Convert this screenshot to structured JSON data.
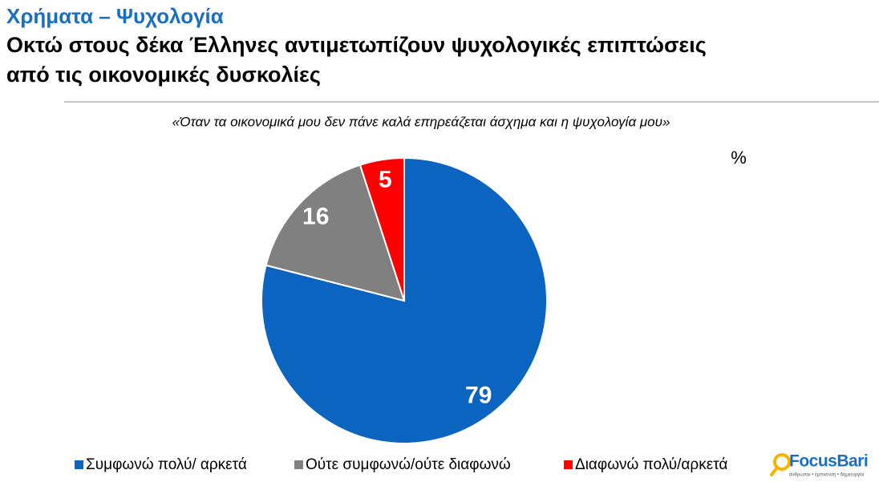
{
  "chart_data": {
    "type": "pie",
    "title": "Χρήματα – Ψυχολογία",
    "subtitle": [
      "Οκτώ στους δέκα Έλληνες αντιμετωπίζουν ψυχολογικές επιπτώσεις",
      "από τις οικονομικές δυσκολίες"
    ],
    "question": "«Όταν τα οικονομικά μου δεν πάνε καλά επηρεάζεται άσχημα και η ψυχολογία μου»",
    "unit": "%",
    "categories": [
      "Συμφωνώ πολύ/ αρκετά",
      "Ούτε συμφωνώ/ούτε διαφωνώ",
      "Διαφωνώ πολύ/αρκετά"
    ],
    "values": [
      79,
      16,
      5
    ],
    "colors": [
      "#0a64c0",
      "#808080",
      "#ff0000"
    ]
  },
  "logo": {
    "name": "FocusBari",
    "tagline": "άνθρωποι • έμπνευση • δημιουργία"
  }
}
